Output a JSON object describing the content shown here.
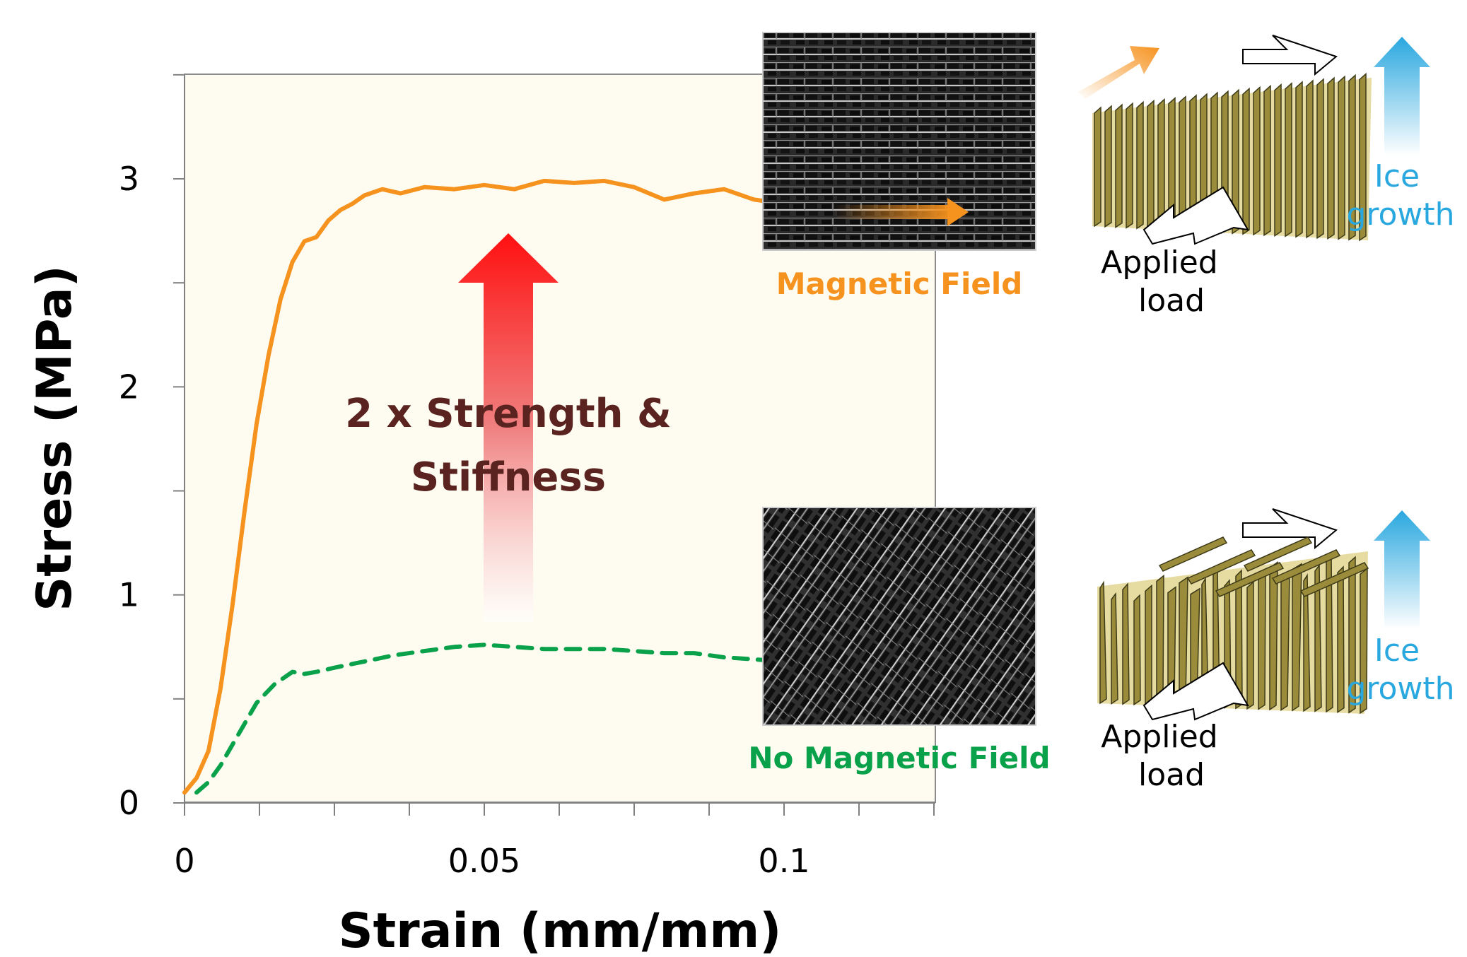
{
  "chart_data": {
    "type": "line",
    "xlabel": "Strain (mm/mm)",
    "ylabel": "Stress (MPa)",
    "xlim": [
      0,
      0.125
    ],
    "ylim": [
      0,
      3.5
    ],
    "x_ticks": [
      0,
      0.05,
      0.1
    ],
    "x_tick_labels": [
      "0",
      "0.05",
      "0.1"
    ],
    "y_ticks": [
      0,
      1,
      2,
      3
    ],
    "y_tick_labels": [
      "0",
      "1",
      "2",
      "3"
    ],
    "grid": false,
    "legend": "none",
    "series": [
      {
        "color": "#f6921e",
        "style": "solid",
        "x": [
          0,
          0.002,
          0.004,
          0.006,
          0.008,
          0.01,
          0.012,
          0.014,
          0.016,
          0.018,
          0.02,
          0.022,
          0.024,
          0.026,
          0.028,
          0.03,
          0.033,
          0.036,
          0.04,
          0.045,
          0.05,
          0.055,
          0.06,
          0.065,
          0.07,
          0.075,
          0.08,
          0.085,
          0.09,
          0.095,
          0.1
        ],
        "y": [
          0.05,
          0.12,
          0.25,
          0.55,
          0.95,
          1.4,
          1.82,
          2.15,
          2.42,
          2.6,
          2.7,
          2.72,
          2.8,
          2.85,
          2.88,
          2.92,
          2.95,
          2.93,
          2.96,
          2.95,
          2.97,
          2.95,
          2.99,
          2.98,
          2.99,
          2.96,
          2.9,
          2.93,
          2.95,
          2.9,
          2.88
        ]
      },
      {
        "color": "#0aa14b",
        "style": "dashed",
        "x": [
          0.002,
          0.004,
          0.006,
          0.008,
          0.01,
          0.012,
          0.015,
          0.018,
          0.02,
          0.022,
          0.025,
          0.03,
          0.035,
          0.04,
          0.045,
          0.05,
          0.055,
          0.06,
          0.065,
          0.07,
          0.075,
          0.08,
          0.085,
          0.09,
          0.095,
          0.1
        ],
        "y": [
          0.05,
          0.1,
          0.18,
          0.28,
          0.38,
          0.48,
          0.57,
          0.63,
          0.62,
          0.63,
          0.65,
          0.68,
          0.71,
          0.73,
          0.75,
          0.76,
          0.75,
          0.74,
          0.74,
          0.74,
          0.73,
          0.72,
          0.72,
          0.7,
          0.69,
          0.68
        ]
      }
    ],
    "annotation": [
      "2 x Strength &",
      "Stiffness"
    ]
  },
  "panels": {
    "top_label": "Magnetic Field",
    "bottom_label": "No Magnetic Field",
    "ice_growth": [
      "Ice",
      "growth"
    ],
    "applied_load": [
      "Applied",
      "load"
    ]
  },
  "colors": {
    "orange": "#f6921e",
    "green": "#0aa14b",
    "annotation": "#5a2320",
    "ice_blue": "#29a7df",
    "plot_bg": "#fefcf0",
    "lamella": "#9a8c3a"
  },
  "icons": [
    "up-arrow-gradient-icon",
    "applied-load-arrow-icon",
    "ice-growth-arrow-icon"
  ]
}
